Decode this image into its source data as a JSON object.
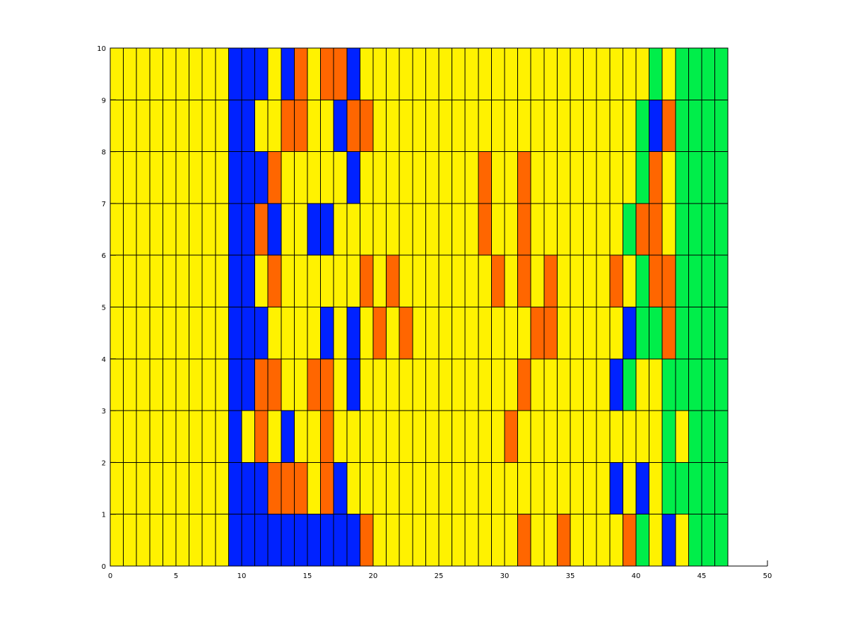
{
  "chart_data": {
    "type": "heatmap",
    "title": "",
    "xlabel": "",
    "ylabel": "",
    "xlim": [
      0,
      50
    ],
    "ylim": [
      0,
      10
    ],
    "x_ticks": [
      "0",
      "5",
      "10",
      "15",
      "20",
      "25",
      "30",
      "35",
      "40",
      "45",
      "50"
    ],
    "y_ticks": [
      "0",
      "1",
      "2",
      "3",
      "4",
      "5",
      "6",
      "7",
      "8",
      "9",
      "10"
    ],
    "grid": true,
    "legend": "none",
    "colors": {
      "Y": "#FFF200",
      "B": "#0022FF",
      "O": "#FF6600",
      "G": "#00EE4A"
    },
    "rows_top_to_bottom": [
      "YYYYYYYYYBBBYBOYOOBYYYYYYYYYYYYYYYYYYYYYYGYGGGG",
      "YYYYYYYYYBBYYOOYYBOOYYYYYYYYYYYYYYYYYYYYGBOGGGG",
      "YYYYYYYYYBBBOYYYYYBYYYYYYYYYOYYOYYYYYYYYGOYGGGG",
      "YYYYYYYYYBBOBYYBBYYYYYYYYYYYOYYOYYYYYYYGOOYGGGG",
      "YYYYYYYYYBBYOYYYYYYOYOYYYYYYYOYOYOYYYYOYGOOGGGG",
      "YYYYYYYYYBBBYYYYBYBYOYOYYYYYYYYYOOYYYYYBGGOGGGG",
      "YYYYYYYYYBBOOYYOOYBYYYYYYYYYYYYOYYYYYYBGYYGGGGG",
      "YYYYYYYYYBYOYBYYOYYYYYYYYYYYYYOYYYYYYYYYYYGYGGG",
      "YYYYYYYYYBBBOOOYOBYYYYYYYYYYYYYYYYYYYYBYBYGGGGG",
      "YYYYYYYYYBBBBBBBBBBOYYYYYYYYYYYOYYOYYYYOGYBYGGG"
    ]
  }
}
